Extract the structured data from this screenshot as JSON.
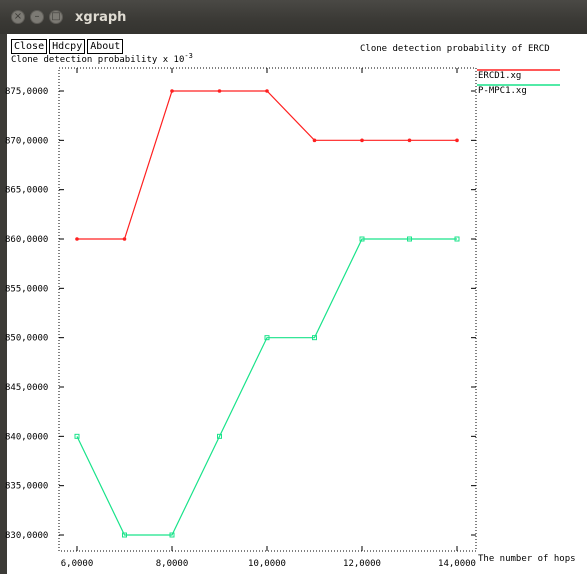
{
  "window": {
    "title": "xgraph"
  },
  "toolbar": {
    "close_label": "Close",
    "hdcpy_label": "Hdcpy",
    "about_label": "About"
  },
  "chart_data": {
    "type": "line",
    "title": "Clone detection probability of ERCD",
    "ylabel_text": "Clone detection probability x 10",
    "ylabel_exponent": "-3",
    "xlabel": "The number of hops",
    "xlim": [
      6,
      14
    ],
    "ylim": [
      30,
      75
    ],
    "grid": false,
    "legend": "top-right",
    "x_ticks": [
      {
        "value": 6,
        "label": "6,0000"
      },
      {
        "value": 8,
        "label": "8,0000"
      },
      {
        "value": 10,
        "label": "10,0000"
      },
      {
        "value": 12,
        "label": "12,0000"
      },
      {
        "value": 14,
        "label": "14,0000"
      }
    ],
    "y_ticks": [
      {
        "value": 30,
        "label": "830,0000"
      },
      {
        "value": 35,
        "label": "835,0000"
      },
      {
        "value": 40,
        "label": "840,0000"
      },
      {
        "value": 45,
        "label": "845,0000"
      },
      {
        "value": 50,
        "label": "850,0000"
      },
      {
        "value": 55,
        "label": "855,0000"
      },
      {
        "value": 60,
        "label": "860,0000"
      },
      {
        "value": 65,
        "label": "865,0000"
      },
      {
        "value": 70,
        "label": "870,0000"
      },
      {
        "value": 75,
        "label": "875,0000"
      }
    ],
    "series": [
      {
        "name": "ERCD1.xg",
        "color": "#ff2020",
        "x": [
          6,
          7,
          8,
          9,
          10,
          11,
          12,
          13,
          14
        ],
        "values": [
          60,
          60,
          75,
          75,
          75,
          70,
          70,
          70,
          70
        ]
      },
      {
        "name": "P-MPC1.xg",
        "color": "#19e38a",
        "x": [
          6,
          7,
          8,
          9,
          10,
          11,
          12,
          13,
          14
        ],
        "values": [
          40,
          30,
          30,
          40,
          50,
          50,
          60,
          60,
          60
        ]
      }
    ]
  }
}
